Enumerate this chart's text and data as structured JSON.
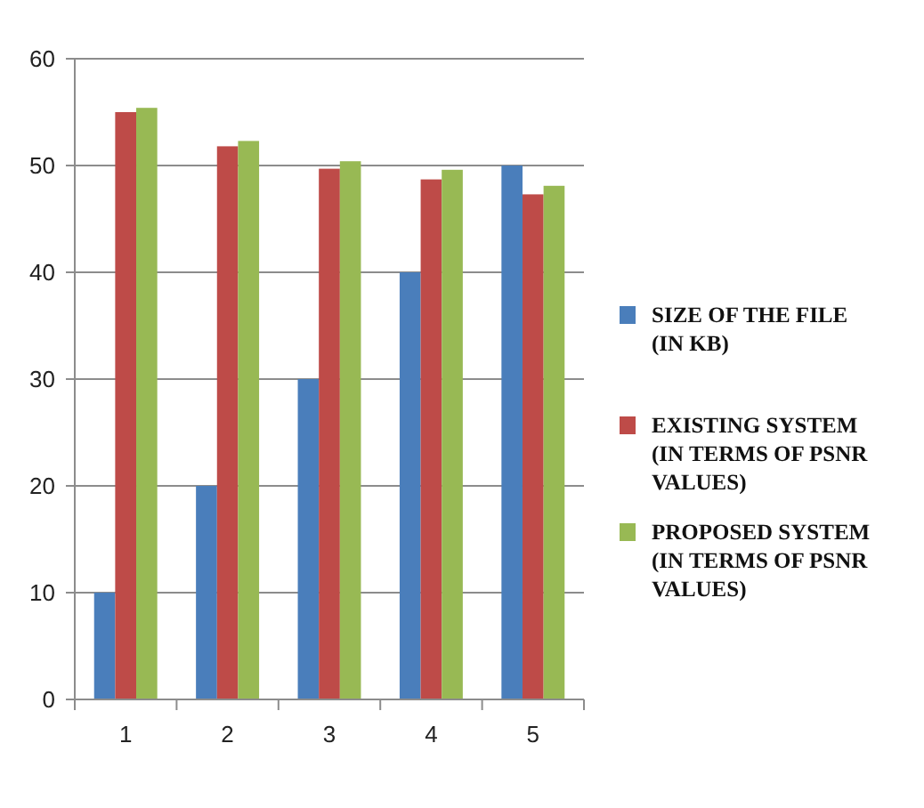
{
  "chart_data": {
    "type": "bar",
    "categories": [
      "1",
      "2",
      "3",
      "4",
      "5"
    ],
    "series": [
      {
        "name": "SIZE OF THE FILE (IN KB)",
        "color": "#4a7ebb",
        "values": [
          10,
          20,
          30,
          40,
          50
        ]
      },
      {
        "name": "EXISTING SYSTEM (IN TERMS OF PSNR VALUES)",
        "color": "#be4b48",
        "values": [
          55,
          51.8,
          49.7,
          48.7,
          47.3
        ]
      },
      {
        "name": "PROPOSED SYSTEM (IN TERMS OF PSNR VALUES)",
        "color": "#98b954",
        "values": [
          55.4,
          52.3,
          50.4,
          49.6,
          48.1
        ]
      }
    ],
    "ylim": [
      0,
      60
    ],
    "yticks": [
      0,
      10,
      20,
      30,
      40,
      50,
      60
    ],
    "grid": "y",
    "legend": "right"
  }
}
